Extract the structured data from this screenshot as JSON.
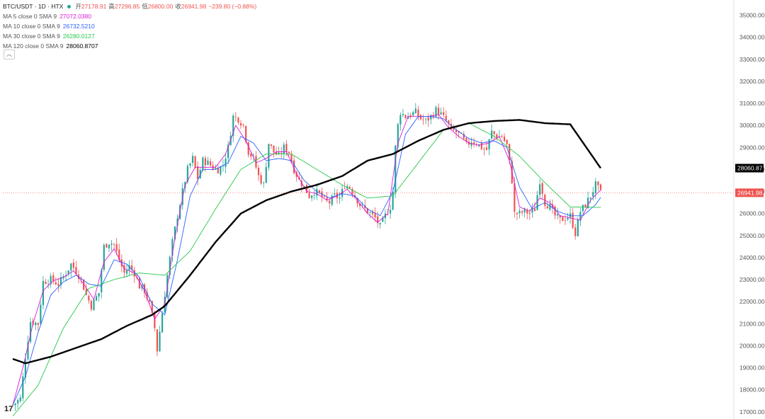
{
  "header": {
    "symbol": "BTC/USDT · 1D · HTX",
    "open_label": "开",
    "open": "27178.91",
    "high_label": "高",
    "high": "27296.85",
    "low_label": "低",
    "low": "26800.00",
    "close_label": "收",
    "close": "26941.98",
    "change": "−239.80 (−0.88%)"
  },
  "legend": [
    {
      "label": "MA 5 close 0 SMA 9",
      "value": "27072.0380",
      "color": "#d81bd8"
    },
    {
      "label": "MA 10 close 0 SMA 9",
      "value": "26732.5210",
      "color": "#2962ff"
    },
    {
      "label": "MA 30 close 0 SMA 9",
      "value": "26280.0127",
      "color": "#26c74a"
    },
    {
      "label": "MA 120 close 0 SMA 9",
      "value": "28060.8707",
      "color": "#000000"
    }
  ],
  "collapse_icon": "chevron-up-icon",
  "logo_text": "17",
  "chart_data": {
    "type": "line",
    "description_series": "candlesticks with moving averages",
    "ylim": [
      16800,
      35500
    ],
    "yticks": [
      17000,
      18000,
      19000,
      20000,
      21000,
      22000,
      23000,
      24000,
      25000,
      26000,
      27000,
      28000,
      29000,
      30000,
      31000,
      32000,
      33000,
      34000,
      35000
    ],
    "ytick_labels": [
      "17000.00",
      "18000.00",
      "19000.00",
      "20000.00",
      "21000.00",
      "22000.00",
      "23000.00",
      "24000.00",
      "25000.00",
      "26000.00",
      "27000.00",
      "28000.00",
      "29000.00",
      "30000.00",
      "31000.00",
      "32000.00",
      "33000.00",
      "34000.00",
      "35000.00"
    ],
    "price_labels": [
      {
        "value": 28060.87,
        "text": "28060.87",
        "color": "#000000"
      },
      {
        "value": 26941.98,
        "text": "26941.98",
        "color": "#ef5350"
      }
    ],
    "up_color": "#26a69a",
    "down_color": "#ef5350",
    "close_path": [
      [
        0,
        17300
      ],
      [
        3,
        17600
      ],
      [
        5,
        19500
      ],
      [
        7,
        21100
      ],
      [
        10,
        21000
      ],
      [
        12,
        22900
      ],
      [
        15,
        23000
      ],
      [
        18,
        22800
      ],
      [
        21,
        23300
      ],
      [
        23,
        23700
      ],
      [
        25,
        23400
      ],
      [
        27,
        23000
      ],
      [
        29,
        22300
      ],
      [
        31,
        21800
      ],
      [
        34,
        22400
      ],
      [
        36,
        24500
      ],
      [
        38,
        24700
      ],
      [
        40,
        24600
      ],
      [
        42,
        23900
      ],
      [
        44,
        23300
      ],
      [
        46,
        23600
      ],
      [
        48,
        23300
      ],
      [
        50,
        22700
      ],
      [
        52,
        22500
      ],
      [
        54,
        21900
      ],
      [
        56,
        20800
      ],
      [
        57,
        19800
      ],
      [
        59,
        21500
      ],
      [
        61,
        23200
      ],
      [
        63,
        24700
      ],
      [
        65,
        25900
      ],
      [
        67,
        27000
      ],
      [
        69,
        28000
      ],
      [
        71,
        28500
      ],
      [
        73,
        27600
      ],
      [
        75,
        28400
      ],
      [
        77,
        28300
      ],
      [
        79,
        28100
      ],
      [
        81,
        28000
      ],
      [
        83,
        28200
      ],
      [
        85,
        29000
      ],
      [
        87,
        30400
      ],
      [
        89,
        30300
      ],
      [
        91,
        30000
      ],
      [
        93,
        28800
      ],
      [
        95,
        28500
      ],
      [
        97,
        27700
      ],
      [
        99,
        27300
      ],
      [
        101,
        29200
      ],
      [
        103,
        28800
      ],
      [
        105,
        28600
      ],
      [
        107,
        29000
      ],
      [
        109,
        28800
      ],
      [
        111,
        28000
      ],
      [
        113,
        27500
      ],
      [
        115,
        27200
      ],
      [
        117,
        26800
      ],
      [
        119,
        27000
      ],
      [
        121,
        26900
      ],
      [
        123,
        26600
      ],
      [
        125,
        26500
      ],
      [
        127,
        26800
      ],
      [
        129,
        26700
      ],
      [
        131,
        27300
      ],
      [
        133,
        27200
      ],
      [
        135,
        26800
      ],
      [
        137,
        26400
      ],
      [
        139,
        26200
      ],
      [
        141,
        26000
      ],
      [
        143,
        25800
      ],
      [
        145,
        25400
      ],
      [
        147,
        25900
      ],
      [
        149,
        26300
      ],
      [
        150,
        27000
      ],
      [
        151,
        29000
      ],
      [
        152,
        30000
      ],
      [
        153,
        30600
      ],
      [
        155,
        30400
      ],
      [
        157,
        30500
      ],
      [
        159,
        30600
      ],
      [
        161,
        30300
      ],
      [
        163,
        30200
      ],
      [
        165,
        30400
      ],
      [
        167,
        30700
      ],
      [
        169,
        30500
      ],
      [
        171,
        30200
      ],
      [
        173,
        29800
      ],
      [
        175,
        29700
      ],
      [
        177,
        29500
      ],
      [
        179,
        29100
      ],
      [
        181,
        29300
      ],
      [
        183,
        29200
      ],
      [
        185,
        29000
      ],
      [
        187,
        28900
      ],
      [
        189,
        29700
      ],
      [
        191,
        29500
      ],
      [
        193,
        29500
      ],
      [
        195,
        29100
      ],
      [
        197,
        27500
      ],
      [
        198,
        26000
      ],
      [
        200,
        26000
      ],
      [
        202,
        26100
      ],
      [
        204,
        26000
      ],
      [
        206,
        26200
      ],
      [
        208,
        27500
      ],
      [
        210,
        26500
      ],
      [
        212,
        26300
      ],
      [
        214,
        25900
      ],
      [
        216,
        25700
      ],
      [
        218,
        25800
      ],
      [
        220,
        25900
      ],
      [
        222,
        25100
      ],
      [
        224,
        26100
      ],
      [
        226,
        26400
      ],
      [
        228,
        26800
      ],
      [
        230,
        27300
      ],
      [
        232,
        26942
      ]
    ],
    "ma_paths": {
      "ma5": [
        [
          0,
          17300
        ],
        [
          4,
          19000
        ],
        [
          8,
          21000
        ],
        [
          12,
          22500
        ],
        [
          16,
          22950
        ],
        [
          20,
          23100
        ],
        [
          24,
          23400
        ],
        [
          28,
          22800
        ],
        [
          32,
          22100
        ],
        [
          36,
          23800
        ],
        [
          40,
          24400
        ],
        [
          44,
          23500
        ],
        [
          48,
          23300
        ],
        [
          52,
          22500
        ],
        [
          56,
          21200
        ],
        [
          60,
          21900
        ],
        [
          64,
          24900
        ],
        [
          68,
          27300
        ],
        [
          72,
          28100
        ],
        [
          76,
          28100
        ],
        [
          80,
          28100
        ],
        [
          84,
          28700
        ],
        [
          88,
          30000
        ],
        [
          92,
          29300
        ],
        [
          96,
          28300
        ],
        [
          100,
          28500
        ],
        [
          104,
          28800
        ],
        [
          108,
          28800
        ],
        [
          112,
          27800
        ],
        [
          116,
          27000
        ],
        [
          120,
          26900
        ],
        [
          124,
          26600
        ],
        [
          128,
          26800
        ],
        [
          132,
          27100
        ],
        [
          136,
          26600
        ],
        [
          140,
          26000
        ],
        [
          144,
          25600
        ],
        [
          148,
          26000
        ],
        [
          152,
          29200
        ],
        [
          156,
          30400
        ],
        [
          160,
          30400
        ],
        [
          164,
          30400
        ],
        [
          168,
          30500
        ],
        [
          172,
          29900
        ],
        [
          176,
          29500
        ],
        [
          180,
          29200
        ],
        [
          184,
          29100
        ],
        [
          188,
          29200
        ],
        [
          192,
          29500
        ],
        [
          196,
          28400
        ],
        [
          200,
          26300
        ],
        [
          204,
          26100
        ],
        [
          208,
          26700
        ],
        [
          212,
          26500
        ],
        [
          216,
          25900
        ],
        [
          220,
          25800
        ],
        [
          224,
          25700
        ],
        [
          228,
          26600
        ],
        [
          232,
          27072
        ]
      ],
      "ma10": [
        [
          0,
          17300
        ],
        [
          5,
          18600
        ],
        [
          10,
          20600
        ],
        [
          15,
          22300
        ],
        [
          20,
          22900
        ],
        [
          25,
          23200
        ],
        [
          30,
          22800
        ],
        [
          35,
          22700
        ],
        [
          40,
          23900
        ],
        [
          45,
          23700
        ],
        [
          50,
          23100
        ],
        [
          55,
          21900
        ],
        [
          60,
          21400
        ],
        [
          65,
          23900
        ],
        [
          70,
          26800
        ],
        [
          75,
          28000
        ],
        [
          80,
          28000
        ],
        [
          85,
          28300
        ],
        [
          90,
          29500
        ],
        [
          95,
          29200
        ],
        [
          100,
          28400
        ],
        [
          105,
          28500
        ],
        [
          110,
          28400
        ],
        [
          115,
          27500
        ],
        [
          120,
          27000
        ],
        [
          125,
          26700
        ],
        [
          130,
          26900
        ],
        [
          135,
          26800
        ],
        [
          140,
          26200
        ],
        [
          145,
          25900
        ],
        [
          150,
          27000
        ],
        [
          155,
          29600
        ],
        [
          160,
          30400
        ],
        [
          165,
          30400
        ],
        [
          170,
          30300
        ],
        [
          175,
          29800
        ],
        [
          180,
          29400
        ],
        [
          185,
          29200
        ],
        [
          190,
          29300
        ],
        [
          195,
          29000
        ],
        [
          200,
          27200
        ],
        [
          205,
          26200
        ],
        [
          210,
          26500
        ],
        [
          215,
          26100
        ],
        [
          220,
          25900
        ],
        [
          225,
          25900
        ],
        [
          230,
          26400
        ],
        [
          232,
          26733
        ]
      ],
      "ma30": [
        [
          0,
          16800
        ],
        [
          10,
          18200
        ],
        [
          20,
          20800
        ],
        [
          30,
          22600
        ],
        [
          40,
          23000
        ],
        [
          50,
          23300
        ],
        [
          60,
          23200
        ],
        [
          70,
          24300
        ],
        [
          80,
          26200
        ],
        [
          90,
          28000
        ],
        [
          100,
          28700
        ],
        [
          110,
          28700
        ],
        [
          120,
          28000
        ],
        [
          130,
          27300
        ],
        [
          140,
          26700
        ],
        [
          150,
          26800
        ],
        [
          160,
          28300
        ],
        [
          170,
          29800
        ],
        [
          180,
          30100
        ],
        [
          190,
          29500
        ],
        [
          200,
          28600
        ],
        [
          210,
          27400
        ],
        [
          220,
          26300
        ],
        [
          232,
          26280
        ]
      ],
      "ma120": [
        [
          0,
          19400
        ],
        [
          5,
          19200
        ],
        [
          15,
          19500
        ],
        [
          25,
          19900
        ],
        [
          35,
          20300
        ],
        [
          45,
          20900
        ],
        [
          55,
          21400
        ],
        [
          60,
          21800
        ],
        [
          70,
          23200
        ],
        [
          80,
          24700
        ],
        [
          90,
          26000
        ],
        [
          100,
          26600
        ],
        [
          110,
          27000
        ],
        [
          120,
          27300
        ],
        [
          130,
          27700
        ],
        [
          140,
          28400
        ],
        [
          150,
          28700
        ],
        [
          160,
          29300
        ],
        [
          170,
          29800
        ],
        [
          180,
          30100
        ],
        [
          190,
          30200
        ],
        [
          200,
          30250
        ],
        [
          210,
          30100
        ],
        [
          220,
          30050
        ],
        [
          232,
          28061
        ]
      ]
    },
    "ma_colors": {
      "ma5": "#d81bd8",
      "ma10": "#2962ff",
      "ma30": "#26c74a",
      "ma120": "#000000"
    },
    "x_count": 233
  }
}
